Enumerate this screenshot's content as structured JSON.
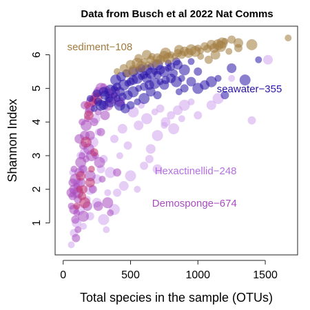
{
  "chart_data": {
    "type": "scatter",
    "title": "Data from Busch et al 2022 Nat Comms",
    "xlabel": "Total species in the sample (OTUs)",
    "ylabel": "Shannon Index",
    "xlim": [
      -60,
      1740
    ],
    "ylim": [
      0.05,
      6.85
    ],
    "xticks": [
      0,
      500,
      1000,
      1500
    ],
    "yticks": [
      1,
      2,
      3,
      4,
      5,
      6
    ],
    "grid": false,
    "colors": {
      "sediment": "#a07a3c",
      "seawater": "#2a14a8",
      "hexactinellid": "#d0a4ee",
      "demosponge": "#a94cbf",
      "demosponge_dark": "#c0306a"
    },
    "annotations": [
      {
        "text": "sediment−108",
        "x": 30,
        "y": 6.13,
        "color": "#a07a3c"
      },
      {
        "text": "seawater−355",
        "x": 1140,
        "y": 4.88,
        "color": "#2a14a8"
      },
      {
        "text": "Hexactinellid−248",
        "x": 680,
        "y": 2.45,
        "color": "#b56fe0"
      },
      {
        "text": "Demosponge−674",
        "x": 660,
        "y": 1.48,
        "color": "#a94cbf"
      }
    ],
    "groups": [
      {
        "key": "hexactinellid",
        "points": [
          [
            60,
            0.35
          ],
          [
            80,
            0.7
          ],
          [
            100,
            1.0
          ],
          [
            120,
            1.4
          ],
          [
            150,
            0.9
          ],
          [
            200,
            1.2
          ],
          [
            250,
            1.6
          ],
          [
            300,
            1.1
          ],
          [
            320,
            0.8
          ],
          [
            400,
            1.9
          ],
          [
            450,
            2.1
          ],
          [
            500,
            2.4
          ],
          [
            550,
            2.0
          ],
          [
            600,
            2.7
          ],
          [
            650,
            3.2
          ],
          [
            700,
            3.6
          ],
          [
            750,
            3.9
          ],
          [
            800,
            4.2
          ],
          [
            850,
            4.35
          ],
          [
            900,
            4.5
          ],
          [
            950,
            4.6
          ],
          [
            1000,
            4.2
          ],
          [
            1100,
            4.5
          ],
          [
            1150,
            4.7
          ],
          [
            1250,
            5.3
          ],
          [
            1400,
            4.05
          ],
          [
            1520,
            5.85
          ],
          [
            350,
            2.5
          ],
          [
            420,
            3.0
          ],
          [
            480,
            3.3
          ],
          [
            560,
            3.9
          ],
          [
            620,
            4.1
          ],
          [
            680,
            4.3
          ],
          [
            720,
            4.4
          ],
          [
            760,
            4.0
          ],
          [
            820,
            3.8
          ],
          [
            880,
            4.1
          ],
          [
            300,
            2.9
          ],
          [
            250,
            2.3
          ],
          [
            200,
            2.0
          ],
          [
            180,
            1.7
          ],
          [
            140,
            2.6
          ],
          [
            160,
            3.1
          ],
          [
            220,
            3.4
          ],
          [
            260,
            3.7
          ],
          [
            380,
            3.5
          ],
          [
            440,
            3.8
          ],
          [
            520,
            4.3
          ],
          [
            580,
            4.5
          ],
          [
            640,
            2.9
          ],
          [
            700,
            2.6
          ],
          [
            380,
            1.4
          ],
          [
            330,
            1.9
          ],
          [
            280,
            2.6
          ],
          [
            110,
            2.2
          ],
          [
            90,
            1.9
          ],
          [
            70,
            2.5
          ],
          [
            130,
            3.0
          ],
          [
            240,
            4.1
          ],
          [
            420,
            4.6
          ]
        ]
      },
      {
        "key": "demosponge",
        "points": [
          [
            60,
            1.5
          ],
          [
            70,
            1.8
          ],
          [
            80,
            2.0
          ],
          [
            90,
            2.3
          ],
          [
            100,
            2.1
          ],
          [
            110,
            1.7
          ],
          [
            120,
            2.5
          ],
          [
            130,
            2.8
          ],
          [
            140,
            3.0
          ],
          [
            150,
            3.3
          ],
          [
            160,
            3.6
          ],
          [
            170,
            3.9
          ],
          [
            180,
            4.1
          ],
          [
            190,
            4.3
          ],
          [
            200,
            4.4
          ],
          [
            210,
            4.6
          ],
          [
            220,
            4.7
          ],
          [
            240,
            4.8
          ],
          [
            260,
            4.9
          ],
          [
            280,
            5.0
          ],
          [
            300,
            5.05
          ],
          [
            320,
            4.95
          ],
          [
            340,
            4.85
          ],
          [
            360,
            4.7
          ],
          [
            260,
            4.3
          ],
          [
            230,
            4.0
          ],
          [
            200,
            3.6
          ],
          [
            190,
            3.2
          ],
          [
            170,
            2.9
          ],
          [
            150,
            2.6
          ],
          [
            130,
            2.2
          ],
          [
            110,
            1.9
          ],
          [
            100,
            1.3
          ],
          [
            90,
            1.1
          ],
          [
            80,
            1.4
          ],
          [
            200,
            2.4
          ],
          [
            240,
            3.0
          ],
          [
            280,
            3.7
          ],
          [
            310,
            4.2
          ],
          [
            330,
            4.5
          ],
          [
            140,
            4.0
          ],
          [
            160,
            4.5
          ],
          [
            120,
            3.5
          ],
          [
            270,
            2.8
          ],
          [
            290,
            2.3
          ],
          [
            220,
            2.0
          ],
          [
            260,
            1.5
          ],
          [
            330,
            1.6
          ],
          [
            350,
            1.3
          ],
          [
            400,
            2.5
          ],
          [
            420,
            4.6
          ],
          [
            380,
            4.9
          ],
          [
            80,
            2.6
          ],
          [
            70,
            2.2
          ],
          [
            60,
            1.9
          ],
          [
            150,
            1.2
          ],
          [
            110,
            0.8
          ],
          [
            95,
            0.55
          ],
          [
            180,
            1.5
          ],
          [
            210,
            3.0
          ]
        ]
      },
      {
        "key": "demosponge_dark",
        "points": [
          [
            100,
            1.5
          ],
          [
            150,
            2.0
          ],
          [
            200,
            2.2
          ],
          [
            160,
            1.6
          ],
          [
            180,
            4.5
          ],
          [
            220,
            4.6
          ],
          [
            130,
            2.4
          ],
          [
            170,
            3.4
          ],
          [
            210,
            2.6
          ],
          [
            140,
            1.8
          ],
          [
            190,
            4.2
          ],
          [
            250,
            4.7
          ],
          [
            120,
            2.0
          ],
          [
            230,
            3.1
          ]
        ]
      },
      {
        "key": "seawater",
        "points": [
          [
            200,
            4.7
          ],
          [
            250,
            4.85
          ],
          [
            300,
            4.9
          ],
          [
            350,
            4.95
          ],
          [
            380,
            5.0
          ],
          [
            400,
            5.05
          ],
          [
            420,
            4.9
          ],
          [
            450,
            5.1
          ],
          [
            480,
            5.15
          ],
          [
            500,
            5.2
          ],
          [
            520,
            5.25
          ],
          [
            550,
            5.3
          ],
          [
            580,
            5.35
          ],
          [
            600,
            5.4
          ],
          [
            620,
            5.3
          ],
          [
            650,
            5.45
          ],
          [
            680,
            5.5
          ],
          [
            700,
            5.4
          ],
          [
            720,
            5.55
          ],
          [
            750,
            5.5
          ],
          [
            780,
            5.6
          ],
          [
            800,
            5.65
          ],
          [
            850,
            5.7
          ],
          [
            900,
            5.55
          ],
          [
            950,
            5.8
          ],
          [
            1000,
            5.5
          ],
          [
            1050,
            5.1
          ],
          [
            1100,
            5.2
          ],
          [
            1150,
            5.3
          ],
          [
            1200,
            4.8
          ],
          [
            1250,
            5.6
          ],
          [
            1350,
            5.25
          ],
          [
            1450,
            5.85
          ],
          [
            260,
            4.6
          ],
          [
            300,
            4.5
          ],
          [
            350,
            4.6
          ],
          [
            400,
            4.7
          ],
          [
            440,
            4.75
          ],
          [
            480,
            4.8
          ],
          [
            520,
            4.9
          ],
          [
            560,
            5.0
          ],
          [
            600,
            5.05
          ],
          [
            640,
            5.1
          ],
          [
            680,
            5.15
          ],
          [
            720,
            5.2
          ],
          [
            760,
            5.25
          ],
          [
            800,
            5.3
          ],
          [
            840,
            5.2
          ],
          [
            880,
            5.3
          ],
          [
            700,
            4.8
          ],
          [
            650,
            4.9
          ],
          [
            600,
            4.7
          ],
          [
            550,
            4.6
          ],
          [
            500,
            4.5
          ],
          [
            460,
            4.4
          ],
          [
            420,
            4.5
          ],
          [
            380,
            4.8
          ],
          [
            340,
            4.7
          ],
          [
            310,
            4.8
          ],
          [
            280,
            4.5
          ],
          [
            230,
            4.4
          ],
          [
            900,
            5.0
          ],
          [
            950,
            5.2
          ],
          [
            1000,
            5.0
          ],
          [
            860,
            4.9
          ],
          [
            820,
            5.45
          ],
          [
            750,
            5.1
          ],
          [
            620,
            5.55
          ],
          [
            560,
            5.55
          ],
          [
            470,
            5.45
          ],
          [
            430,
            5.35
          ],
          [
            390,
            5.25
          ],
          [
            650,
            5.65
          ],
          [
            580,
            5.6
          ],
          [
            520,
            5.5
          ],
          [
            700,
            5.7
          ],
          [
            780,
            5.75
          ],
          [
            840,
            5.8
          ]
        ]
      },
      {
        "key": "sediment",
        "points": [
          [
            400,
            5.5
          ],
          [
            450,
            5.6
          ],
          [
            500,
            5.7
          ],
          [
            550,
            5.75
          ],
          [
            600,
            5.8
          ],
          [
            650,
            5.85
          ],
          [
            700,
            5.9
          ],
          [
            750,
            5.95
          ],
          [
            800,
            6.0
          ],
          [
            850,
            6.05
          ],
          [
            900,
            6.1
          ],
          [
            950,
            6.15
          ],
          [
            1000,
            6.2
          ],
          [
            1050,
            6.25
          ],
          [
            1100,
            6.3
          ],
          [
            1150,
            6.3
          ],
          [
            1200,
            6.4
          ],
          [
            1250,
            6.45
          ],
          [
            1300,
            6.35
          ],
          [
            1400,
            6.3
          ],
          [
            1670,
            6.5
          ],
          [
            480,
            5.45
          ],
          [
            520,
            5.55
          ],
          [
            580,
            5.65
          ],
          [
            630,
            5.7
          ],
          [
            680,
            5.75
          ],
          [
            720,
            5.85
          ],
          [
            780,
            5.9
          ],
          [
            830,
            5.95
          ],
          [
            880,
            6.0
          ],
          [
            930,
            6.05
          ],
          [
            980,
            6.1
          ],
          [
            1020,
            6.12
          ],
          [
            1070,
            6.18
          ],
          [
            1120,
            6.2
          ],
          [
            1170,
            6.25
          ],
          [
            1020,
            5.95
          ],
          [
            1080,
            5.85
          ],
          [
            1130,
            6.0
          ],
          [
            1180,
            6.35
          ],
          [
            1230,
            6.1
          ],
          [
            1300,
            6.2
          ],
          [
            860,
            6.15
          ],
          [
            760,
            6.05
          ],
          [
            660,
            5.95
          ],
          [
            560,
            5.9
          ],
          [
            620,
            6.0
          ]
        ]
      }
    ]
  }
}
